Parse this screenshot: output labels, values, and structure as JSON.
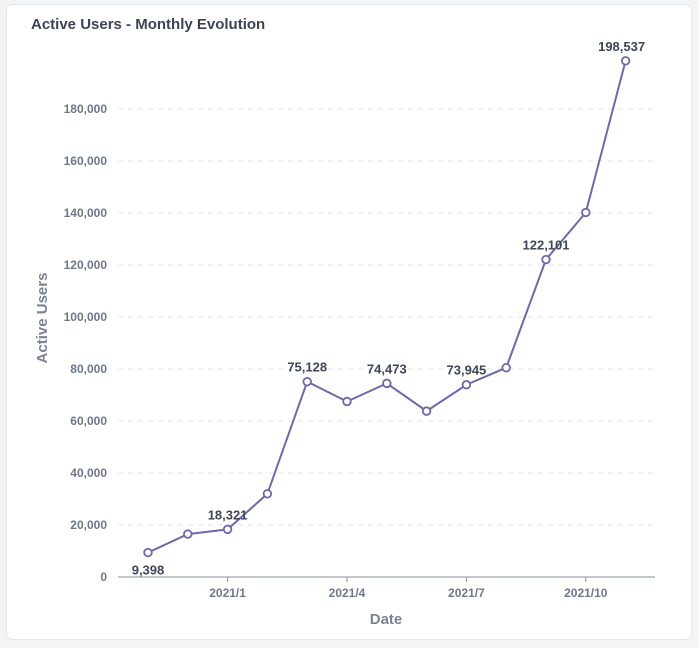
{
  "card": {
    "title": "Active Users - Monthly Evolution"
  },
  "chart_data": {
    "type": "line",
    "title": "Active Users - Monthly Evolution",
    "xlabel": "Date",
    "ylabel": "Active Users",
    "x": [
      "2020-11",
      "2020-12",
      "2021-01",
      "2021-02",
      "2021-03",
      "2021-04",
      "2021-05",
      "2021-06",
      "2021-07",
      "2021-08",
      "2021-09",
      "2021-10",
      "2021-11"
    ],
    "x_ticks": [
      "2021/1",
      "2021/4",
      "2021/7",
      "2021/10"
    ],
    "series": [
      {
        "values": [
          9398,
          16500,
          18321,
          32000,
          75128,
          67500,
          74473,
          63800,
          73945,
          80500,
          122101,
          140200,
          198537
        ],
        "data_labels": [
          "9,398",
          "",
          "18,321",
          "",
          "75,128",
          "",
          "74,473",
          "",
          "73,945",
          "",
          "122,101",
          "",
          "198,537"
        ],
        "color": "#6d6aa8"
      }
    ],
    "y_ticks": [
      "0",
      "20,000",
      "40,000",
      "60,000",
      "80,000",
      "100,000",
      "120,000",
      "140,000",
      "160,000",
      "180,000"
    ],
    "ylim": [
      0,
      200000
    ],
    "grid": true
  }
}
